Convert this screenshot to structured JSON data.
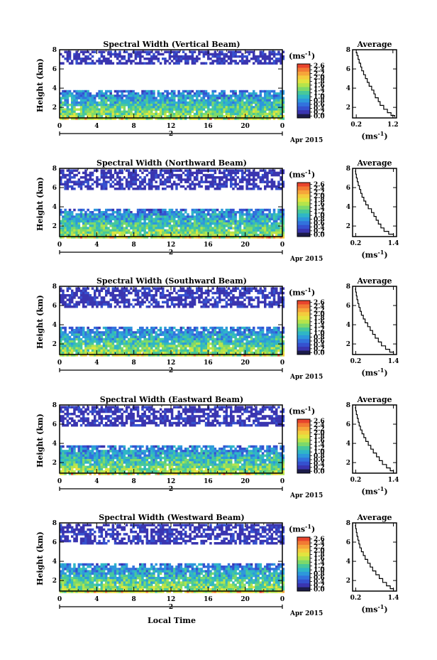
{
  "colorbar": {
    "unit": "(ms",
    "unit_exp": "-1",
    "ticks": [
      "2.6",
      "2.4",
      "2.2",
      "2.0",
      "1.8",
      "1.6",
      "1.4",
      "1.2",
      "1.0",
      "0.8",
      "0.6",
      "0.4",
      "0.2",
      "0.0"
    ],
    "colors": [
      "#e8452d",
      "#f27a34",
      "#f6a53a",
      "#f4cc3d",
      "#e2e43f",
      "#b5e44b",
      "#7dd96a",
      "#47c89a",
      "#2fb6c6",
      "#2d98db",
      "#3272dd",
      "#3551cf",
      "#3a35b0",
      "#1c1c4a"
    ]
  },
  "date_label": "Apr 2015",
  "x_axis_label": "Local Time",
  "avg": {
    "title": "Average",
    "unit": "(ms",
    "unit_exp": "-1"
  },
  "chart_data": [
    {
      "type": "heatmap",
      "title": "Spectral Width (Vertical Beam)",
      "ylabel": "Height (km)",
      "x_ticks": [
        "0",
        "4",
        "8",
        "12",
        "16",
        "20",
        "0"
      ],
      "day_label": "2",
      "y_ticks": [
        "2",
        "4",
        "6",
        "8"
      ],
      "xlim": [
        0,
        24
      ],
      "ylim": [
        0.9,
        8.0
      ],
      "echo_layers": [
        {
          "name": "upper",
          "bottom_km": 6.6,
          "top_km": 7.9
        },
        {
          "name": "lower",
          "bottom_km": 0.9,
          "top_km": 3.8
        }
      ],
      "profile": {
        "xlim": [
          0.1,
          1.3
        ],
        "x_ticks": [
          "0.2",
          "1.2"
        ],
        "ylim": [
          0.9,
          8.0
        ],
        "y_ticks": [
          "2",
          "4",
          "6",
          "8"
        ],
        "x": [
          1.25,
          1.15,
          1.05,
          0.95,
          0.85,
          0.8,
          0.72,
          0.68,
          0.62,
          0.55,
          0.5,
          0.45,
          0.4,
          0.35,
          0.32,
          0.28,
          0.25,
          0.22,
          0.2
        ],
        "y": [
          1.0,
          1.3,
          1.6,
          2.0,
          2.4,
          2.8,
          3.2,
          3.6,
          4.0,
          4.4,
          4.8,
          5.2,
          5.6,
          6.0,
          6.4,
          6.8,
          7.2,
          7.6,
          7.8
        ]
      }
    },
    {
      "type": "heatmap",
      "title": "Spectral Width (Northward Beam)",
      "ylabel": "Height (km)",
      "x_ticks": [
        "0",
        "4",
        "8",
        "12",
        "16",
        "20",
        "0"
      ],
      "day_label": "2",
      "y_ticks": [
        "2",
        "4",
        "6",
        "8"
      ],
      "xlim": [
        0,
        24
      ],
      "ylim": [
        0.9,
        8.0
      ],
      "echo_layers": [
        {
          "name": "upper",
          "bottom_km": 5.8,
          "top_km": 7.9
        },
        {
          "name": "lower",
          "bottom_km": 0.9,
          "top_km": 3.8
        }
      ],
      "profile": {
        "xlim": [
          0.1,
          1.5
        ],
        "x_ticks": [
          "0.2",
          "1.4"
        ],
        "ylim": [
          0.9,
          8.0
        ],
        "y_ticks": [
          "2",
          "4",
          "6",
          "8"
        ],
        "x": [
          1.4,
          1.25,
          1.1,
          1.0,
          0.92,
          0.85,
          0.78,
          0.7,
          0.6,
          0.52,
          0.46,
          0.4,
          0.36,
          0.32,
          0.28,
          0.25,
          0.22,
          0.2,
          0.19
        ],
        "y": [
          1.0,
          1.3,
          1.6,
          2.0,
          2.4,
          2.8,
          3.2,
          3.6,
          4.0,
          4.4,
          4.8,
          5.2,
          5.6,
          6.0,
          6.4,
          6.8,
          7.2,
          7.6,
          7.8
        ]
      }
    },
    {
      "type": "heatmap",
      "title": "Spectral Width (Southward Beam)",
      "ylabel": "Height (km)",
      "x_ticks": [
        "0",
        "4",
        "8",
        "12",
        "16",
        "20",
        "0"
      ],
      "day_label": "2",
      "y_ticks": [
        "2",
        "4",
        "6",
        "8"
      ],
      "xlim": [
        0,
        24
      ],
      "ylim": [
        0.9,
        8.0
      ],
      "echo_layers": [
        {
          "name": "upper",
          "bottom_km": 5.8,
          "top_km": 7.9
        },
        {
          "name": "lower",
          "bottom_km": 0.9,
          "top_km": 3.8
        }
      ],
      "profile": {
        "xlim": [
          0.1,
          1.5
        ],
        "x_ticks": [
          "0.2",
          "1.4"
        ],
        "ylim": [
          0.9,
          8.0
        ],
        "y_ticks": [
          "2",
          "4",
          "6",
          "8"
        ],
        "x": [
          1.4,
          1.28,
          1.15,
          1.02,
          0.92,
          0.82,
          0.74,
          0.66,
          0.58,
          0.5,
          0.44,
          0.38,
          0.34,
          0.3,
          0.27,
          0.24,
          0.22,
          0.2,
          0.19
        ],
        "y": [
          1.0,
          1.3,
          1.6,
          2.0,
          2.4,
          2.8,
          3.2,
          3.6,
          4.0,
          4.4,
          4.8,
          5.2,
          5.6,
          6.0,
          6.4,
          6.8,
          7.2,
          7.6,
          7.8
        ]
      }
    },
    {
      "type": "heatmap",
      "title": "Spectral Width (Eastward Beam)",
      "ylabel": "Height (km)",
      "x_ticks": [
        "0",
        "4",
        "8",
        "12",
        "16",
        "20",
        "0"
      ],
      "day_label": "2",
      "y_ticks": [
        "2",
        "4",
        "6",
        "8"
      ],
      "xlim": [
        0,
        24
      ],
      "ylim": [
        0.9,
        8.0
      ],
      "echo_layers": [
        {
          "name": "upper",
          "bottom_km": 5.8,
          "top_km": 7.9
        },
        {
          "name": "lower",
          "bottom_km": 0.9,
          "top_km": 3.8
        }
      ],
      "profile": {
        "xlim": [
          0.1,
          1.5
        ],
        "x_ticks": [
          "0.2",
          "1.4"
        ],
        "ylim": [
          0.9,
          8.0
        ],
        "y_ticks": [
          "2",
          "4",
          "6",
          "8"
        ],
        "x": [
          1.4,
          1.3,
          1.18,
          1.05,
          0.95,
          0.86,
          0.76,
          0.68,
          0.6,
          0.52,
          0.46,
          0.4,
          0.35,
          0.31,
          0.28,
          0.25,
          0.22,
          0.2,
          0.19
        ],
        "y": [
          1.0,
          1.3,
          1.6,
          2.0,
          2.4,
          2.8,
          3.2,
          3.6,
          4.0,
          4.4,
          4.8,
          5.2,
          5.6,
          6.0,
          6.4,
          6.8,
          7.2,
          7.6,
          7.8
        ]
      }
    },
    {
      "type": "heatmap",
      "title": "Spectral Width (Westward Beam)",
      "ylabel": "Height (km)",
      "x_ticks": [
        "0",
        "4",
        "8",
        "12",
        "16",
        "20",
        "0"
      ],
      "day_label": "2",
      "y_ticks": [
        "2",
        "4",
        "6",
        "8"
      ],
      "xlim": [
        0,
        24
      ],
      "ylim": [
        0.9,
        8.0
      ],
      "echo_layers": [
        {
          "name": "upper",
          "bottom_km": 5.8,
          "top_km": 7.9
        },
        {
          "name": "lower",
          "bottom_km": 0.9,
          "top_km": 3.8
        }
      ],
      "profile": {
        "xlim": [
          0.1,
          1.5
        ],
        "x_ticks": [
          "0.2",
          "1.4"
        ],
        "ylim": [
          0.9,
          8.0
        ],
        "y_ticks": [
          "2",
          "4",
          "6",
          "8"
        ],
        "x": [
          1.4,
          1.3,
          1.18,
          1.06,
          0.95,
          0.84,
          0.74,
          0.66,
          0.58,
          0.5,
          0.44,
          0.38,
          0.33,
          0.3,
          0.27,
          0.24,
          0.22,
          0.2,
          0.19
        ],
        "y": [
          1.0,
          1.3,
          1.6,
          2.0,
          2.4,
          2.8,
          3.2,
          3.6,
          4.0,
          4.4,
          4.8,
          5.2,
          5.6,
          6.0,
          6.4,
          6.8,
          7.2,
          7.6,
          7.8
        ]
      }
    }
  ]
}
